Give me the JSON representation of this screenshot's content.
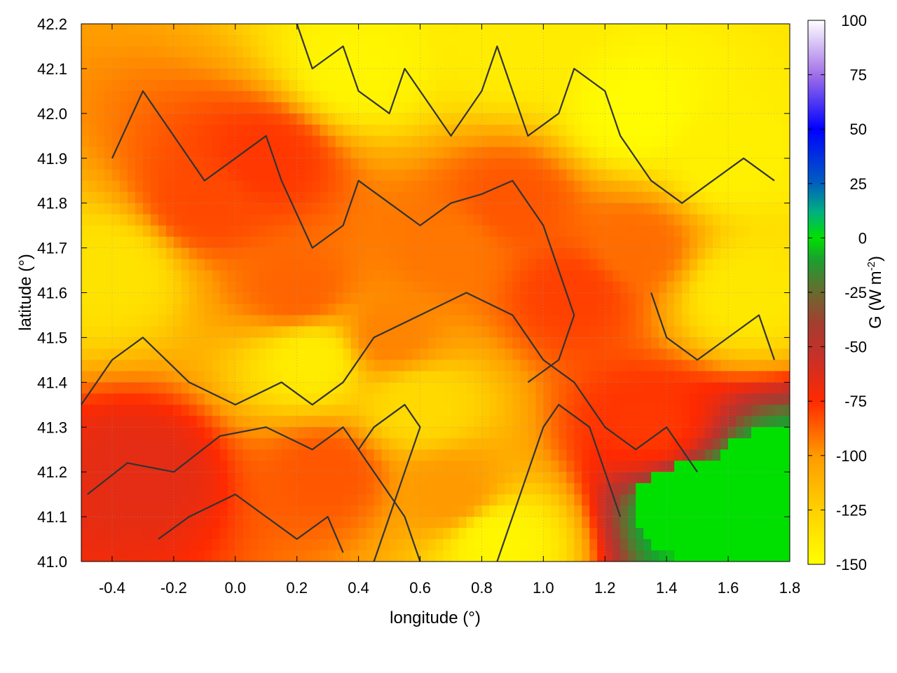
{
  "chart_data": {
    "type": "heatmap",
    "xlabel": "longitude (°)",
    "ylabel": "latitude (°)",
    "colorbar_label_main": "G (W m",
    "colorbar_label_sup": "-2",
    "colorbar_label_tail": ")",
    "xlim": [
      -0.5,
      1.8
    ],
    "ylim": [
      41.0,
      42.2
    ],
    "clim": [
      -150,
      100
    ],
    "xticks": [
      -0.4,
      -0.2,
      0.0,
      0.2,
      0.4,
      0.6,
      0.8,
      1.0,
      1.2,
      1.4,
      1.6,
      1.8
    ],
    "xtick_labels": [
      "-0.4",
      "-0.2",
      "0.0",
      "0.2",
      "0.4",
      "0.6",
      "0.8",
      "1.0",
      "1.2",
      "1.4",
      "1.6",
      "1.8"
    ],
    "yticks": [
      41.0,
      41.1,
      41.2,
      41.3,
      41.4,
      41.5,
      41.6,
      41.7,
      41.8,
      41.9,
      42.0,
      42.1,
      42.2
    ],
    "ytick_labels": [
      "41.0",
      "41.1",
      "41.2",
      "41.3",
      "41.4",
      "41.5",
      "41.6",
      "41.7",
      "41.8",
      "41.9",
      "42.0",
      "42.1",
      "42.2"
    ],
    "cticks": [
      -150,
      -125,
      -100,
      -75,
      -50,
      -25,
      0,
      25,
      50,
      75,
      100
    ],
    "ctick_labels": [
      "-150",
      "-125",
      "-100",
      "-75",
      "-50",
      "-25",
      "0",
      "25",
      "50",
      "75",
      "100"
    ],
    "colormap": [
      {
        "value": -150,
        "color": "#ffff00"
      },
      {
        "value": -125,
        "color": "#ffd000"
      },
      {
        "value": -100,
        "color": "#ff9a00"
      },
      {
        "value": -75,
        "color": "#ff2a00"
      },
      {
        "value": -55,
        "color": "#c83028"
      },
      {
        "value": -40,
        "color": "#a63c30"
      },
      {
        "value": -25,
        "color": "#6a6a30"
      },
      {
        "value": -10,
        "color": "#1aa030"
      },
      {
        "value": 0,
        "color": "#00e000"
      },
      {
        "value": 12,
        "color": "#00b080"
      },
      {
        "value": 25,
        "color": "#0060c0"
      },
      {
        "value": 50,
        "color": "#0000ff"
      },
      {
        "value": 75,
        "color": "#a070e8"
      },
      {
        "value": 100,
        "color": "#ffffff"
      }
    ],
    "grid": true,
    "legend": "colorbar-right",
    "regions": [
      {
        "lon": -0.3,
        "lat": 41.2,
        "value": -65
      },
      {
        "lon": -0.1,
        "lat": 41.8,
        "value": -82
      },
      {
        "lon": 0.1,
        "lat": 41.9,
        "value": -78
      },
      {
        "lon": 0.2,
        "lat": 41.6,
        "value": -88
      },
      {
        "lon": 0.5,
        "lat": 41.5,
        "value": -95
      },
      {
        "lon": 0.7,
        "lat": 41.7,
        "value": -92
      },
      {
        "lon": 0.9,
        "lat": 41.8,
        "value": -85
      },
      {
        "lon": 1.1,
        "lat": 41.6,
        "value": -80
      },
      {
        "lon": 1.3,
        "lat": 41.7,
        "value": -90
      },
      {
        "lon": 0.3,
        "lat": 41.2,
        "value": -85
      },
      {
        "lon": 0.7,
        "lat": 41.15,
        "value": -100
      },
      {
        "lon": 1.35,
        "lat": 41.3,
        "value": -78
      },
      {
        "lon": 0.4,
        "lat": 42.1,
        "value": -145
      },
      {
        "lon": 0.9,
        "lat": 42.15,
        "value": -140
      },
      {
        "lon": 1.3,
        "lat": 42.0,
        "value": -148
      },
      {
        "lon": 1.6,
        "lat": 41.9,
        "value": -142
      },
      {
        "lon": 1.65,
        "lat": 41.6,
        "value": -138
      },
      {
        "lon": 0.25,
        "lat": 41.45,
        "value": -140
      },
      {
        "lon": -0.4,
        "lat": 41.65,
        "value": -135
      },
      {
        "lon": 0.6,
        "lat": 41.35,
        "value": -130
      },
      {
        "lon": 0.85,
        "lat": 41.05,
        "value": -145
      },
      {
        "lon": 1.5,
        "lat": 41.12,
        "value": 0
      },
      {
        "lon": 1.7,
        "lat": 41.05,
        "value": 0
      },
      {
        "lon": 1.75,
        "lat": 41.18,
        "value": 0
      }
    ],
    "contours": [
      [
        [
          -0.48,
          41.15
        ],
        [
          -0.35,
          41.22
        ],
        [
          -0.2,
          41.2
        ],
        [
          -0.05,
          41.28
        ],
        [
          0.1,
          41.3
        ],
        [
          0.25,
          41.25
        ],
        [
          0.35,
          41.3
        ],
        [
          0.45,
          41.2
        ],
        [
          0.55,
          41.1
        ],
        [
          0.6,
          41.0
        ]
      ],
      [
        [
          -0.5,
          41.35
        ],
        [
          -0.4,
          41.45
        ],
        [
          -0.3,
          41.5
        ],
        [
          -0.15,
          41.4
        ],
        [
          0.0,
          41.35
        ],
        [
          0.15,
          41.4
        ],
        [
          0.25,
          41.35
        ],
        [
          0.35,
          41.4
        ],
        [
          0.45,
          41.5
        ],
        [
          0.6,
          41.55
        ],
        [
          0.75,
          41.6
        ],
        [
          0.9,
          41.55
        ],
        [
          1.0,
          41.45
        ],
        [
          1.1,
          41.4
        ],
        [
          1.2,
          41.3
        ],
        [
          1.3,
          41.25
        ],
        [
          1.4,
          41.3
        ],
        [
          1.5,
          41.2
        ]
      ],
      [
        [
          -0.4,
          41.9
        ],
        [
          -0.3,
          42.05
        ],
        [
          -0.2,
          41.95
        ],
        [
          -0.1,
          41.85
        ],
        [
          0.0,
          41.9
        ],
        [
          0.1,
          41.95
        ],
        [
          0.15,
          41.85
        ],
        [
          0.25,
          41.7
        ],
        [
          0.35,
          41.75
        ],
        [
          0.4,
          41.85
        ],
        [
          0.5,
          41.8
        ],
        [
          0.6,
          41.75
        ],
        [
          0.7,
          41.8
        ],
        [
          0.8,
          41.82
        ],
        [
          0.9,
          41.85
        ],
        [
          1.0,
          41.75
        ],
        [
          1.1,
          41.55
        ],
        [
          1.05,
          41.45
        ],
        [
          0.95,
          41.4
        ]
      ],
      [
        [
          0.2,
          42.2
        ],
        [
          0.25,
          42.1
        ],
        [
          0.35,
          42.15
        ],
        [
          0.4,
          42.05
        ],
        [
          0.5,
          42.0
        ],
        [
          0.55,
          42.1
        ],
        [
          0.65,
          42.0
        ],
        [
          0.7,
          41.95
        ],
        [
          0.8,
          42.05
        ],
        [
          0.85,
          42.15
        ],
        [
          0.9,
          42.05
        ],
        [
          0.95,
          41.95
        ],
        [
          1.05,
          42.0
        ],
        [
          1.1,
          42.1
        ],
        [
          1.2,
          42.05
        ],
        [
          1.25,
          41.95
        ],
        [
          1.35,
          41.85
        ],
        [
          1.45,
          41.8
        ],
        [
          1.55,
          41.85
        ],
        [
          1.65,
          41.9
        ],
        [
          1.75,
          41.85
        ]
      ],
      [
        [
          0.45,
          41.0
        ],
        [
          0.5,
          41.1
        ],
        [
          0.55,
          41.2
        ],
        [
          0.6,
          41.3
        ],
        [
          0.55,
          41.35
        ],
        [
          0.45,
          41.3
        ],
        [
          0.4,
          41.25
        ]
      ],
      [
        [
          0.85,
          41.0
        ],
        [
          0.9,
          41.1
        ],
        [
          0.95,
          41.2
        ],
        [
          1.0,
          41.3
        ],
        [
          1.05,
          41.35
        ],
        [
          1.15,
          41.3
        ],
        [
          1.2,
          41.2
        ],
        [
          1.25,
          41.1
        ]
      ],
      [
        [
          1.35,
          41.6
        ],
        [
          1.4,
          41.5
        ],
        [
          1.5,
          41.45
        ],
        [
          1.6,
          41.5
        ],
        [
          1.7,
          41.55
        ],
        [
          1.75,
          41.45
        ]
      ],
      [
        [
          -0.25,
          41.05
        ],
        [
          -0.15,
          41.1
        ],
        [
          0.0,
          41.15
        ],
        [
          0.1,
          41.1
        ],
        [
          0.2,
          41.05
        ],
        [
          0.3,
          41.1
        ],
        [
          0.35,
          41.02
        ]
      ]
    ]
  }
}
